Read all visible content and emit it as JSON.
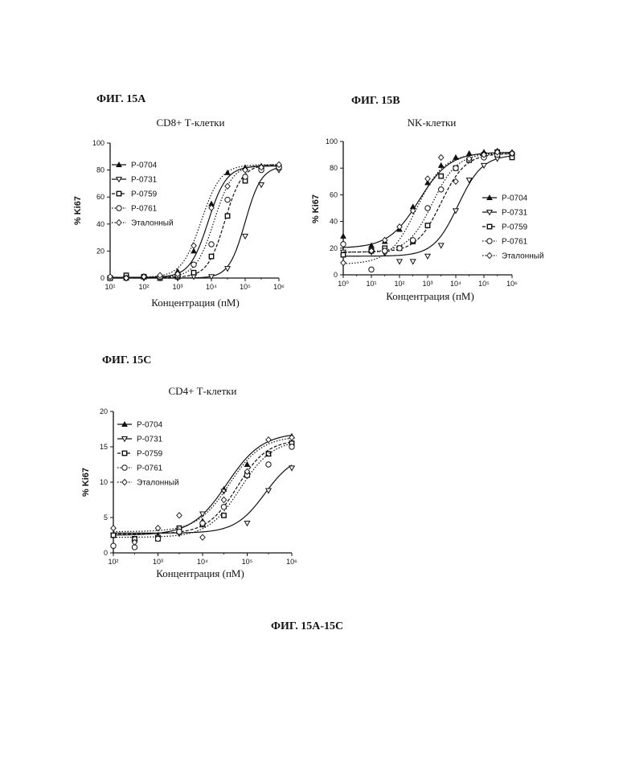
{
  "figure_labels": {
    "a": "ФИГ. 15А",
    "b": "ФИГ. 15В",
    "c": "ФИГ. 15С",
    "caption": "ФИГ. 15А-15С"
  },
  "colors": {
    "ink": "#111111"
  },
  "chart_data": [
    {
      "type": "scatter",
      "title": "CD8+ Т-клетки",
      "xlabel": "Концентрация (пМ)",
      "ylabel": "% Ki67",
      "xscale": "log",
      "xlim": [
        10,
        1000000
      ],
      "ylim": [
        0,
        100
      ],
      "yticks": [
        0,
        20,
        40,
        60,
        80,
        100
      ],
      "xtick_labels": [
        "10¹",
        "10²",
        "10³",
        "10⁴",
        "10⁵",
        "10⁶"
      ],
      "legend_position": "upper-left",
      "series": [
        {
          "name": "P-0704",
          "marker": "triangle-up",
          "line": "solid",
          "fit": {
            "bottom": 0.5,
            "top": 83,
            "ec50": 8000,
            "hill": 1.6
          },
          "x": [
            10,
            30,
            100,
            300,
            1000,
            3000,
            10000,
            30000,
            100000,
            300000,
            1000000
          ],
          "y": [
            0,
            0,
            1,
            2,
            5,
            20,
            55,
            78,
            82,
            83,
            84
          ]
        },
        {
          "name": "P-0731",
          "marker": "triangle-down",
          "line": "solid",
          "fit": {
            "bottom": 0,
            "top": 83,
            "ec50": 100000,
            "hill": 1.8
          },
          "x": [
            10,
            30,
            100,
            300,
            1000,
            3000,
            10000,
            30000,
            100000,
            300000,
            1000000
          ],
          "y": [
            0,
            0,
            0,
            0,
            0,
            1,
            1,
            7,
            31,
            69,
            80
          ]
        },
        {
          "name": "P-0759",
          "marker": "square",
          "line": "dashed",
          "fit": {
            "bottom": 0.5,
            "top": 84,
            "ec50": 25000,
            "hill": 1.7
          },
          "x": [
            10,
            30,
            100,
            300,
            1000,
            3000,
            10000,
            30000,
            100000,
            300000,
            1000000
          ],
          "y": [
            0,
            2,
            1,
            0,
            1,
            4,
            16,
            46,
            72,
            81,
            82
          ]
        },
        {
          "name": "P-0761",
          "marker": "circle",
          "line": "dotted",
          "fit": {
            "bottom": 0.5,
            "top": 84,
            "ec50": 12000,
            "hill": 1.6
          },
          "x": [
            10,
            30,
            100,
            300,
            1000,
            3000,
            10000,
            30000,
            100000,
            300000,
            1000000
          ],
          "y": [
            0,
            0,
            1,
            1,
            2,
            10,
            25,
            58,
            75,
            80,
            82
          ]
        },
        {
          "name": "Эталонный",
          "marker": "diamond",
          "line": "dotted",
          "fit": {
            "bottom": 0.5,
            "top": 84,
            "ec50": 5000,
            "hill": 1.5
          },
          "x": [
            10,
            30,
            100,
            300,
            1000,
            3000,
            10000,
            30000,
            100000,
            300000,
            1000000
          ],
          "y": [
            1,
            0,
            1,
            2,
            3,
            24,
            52,
            68,
            80,
            82,
            84
          ]
        }
      ]
    },
    {
      "type": "scatter",
      "title": "NK-клетки",
      "xlabel": "Концентрация (пМ)",
      "ylabel": "% Ki67",
      "xscale": "log",
      "xlim": [
        1,
        1000000
      ],
      "ylim": [
        0,
        100
      ],
      "yticks": [
        0,
        20,
        40,
        60,
        80,
        100
      ],
      "xtick_labels": [
        "10⁰",
        "10¹",
        "10²",
        "10³",
        "10⁴",
        "10⁵",
        "10⁶"
      ],
      "legend_position": "lower-right",
      "series": [
        {
          "name": "P-0704",
          "marker": "triangle-up",
          "line": "solid",
          "fit": {
            "bottom": 20,
            "top": 92,
            "ec50": 500,
            "hill": 0.8
          },
          "x": [
            1,
            10,
            30,
            100,
            300,
            1000,
            3000,
            10000,
            30000,
            100000,
            300000,
            1000000
          ],
          "y": [
            29,
            22,
            25,
            34,
            51,
            69,
            82,
            88,
            91,
            92,
            93,
            92
          ]
        },
        {
          "name": "P-0731",
          "marker": "triangle-down",
          "line": "solid",
          "fit": {
            "bottom": 14,
            "top": 90,
            "ec50": 12000,
            "hill": 1.0
          },
          "x": [
            1,
            10,
            30,
            100,
            300,
            1000,
            3000,
            10000,
            30000,
            100000,
            300000,
            1000000
          ],
          "y": [
            17,
            17,
            16,
            10,
            10,
            14,
            22,
            48,
            71,
            82,
            87,
            90
          ]
        },
        {
          "name": "P-0759",
          "marker": "square",
          "line": "dashed",
          "fit": {
            "bottom": 17,
            "top": 91,
            "ec50": 3000,
            "hill": 1.0
          },
          "x": [
            1,
            10,
            30,
            100,
            300,
            1000,
            3000,
            10000,
            30000,
            100000,
            300000,
            1000000
          ],
          "y": [
            15,
            18,
            20,
            20,
            25,
            37,
            74,
            80,
            86,
            90,
            92,
            88
          ]
        },
        {
          "name": "P-0761",
          "marker": "circle",
          "line": "dotted",
          "fit": {
            "bottom": 17,
            "top": 91,
            "ec50": 1500,
            "hill": 1.0
          },
          "x": [
            1,
            10,
            30,
            100,
            300,
            1000,
            3000,
            10000,
            30000,
            100000,
            300000,
            1000000
          ],
          "y": [
            23,
            4,
            18,
            20,
            26,
            50,
            64,
            80,
            86,
            88,
            90,
            91
          ]
        },
        {
          "name": "Эталонный",
          "marker": "diamond",
          "line": "dotted",
          "fit": {
            "bottom": 8,
            "top": 91,
            "ec50": 400,
            "hill": 0.9
          },
          "x": [
            1,
            10,
            30,
            100,
            300,
            1000,
            3000,
            10000,
            30000,
            100000,
            300000,
            1000000
          ],
          "y": [
            9,
            18,
            26,
            36,
            48,
            72,
            88,
            70,
            87,
            90,
            92,
            91
          ]
        }
      ]
    },
    {
      "type": "scatter",
      "title": "CD4+ Т-клетки",
      "xlabel": "Концентрация (пМ)",
      "ylabel": "% Ki67",
      "xscale": "log",
      "xlim": [
        100,
        1000000
      ],
      "ylim": [
        0,
        20
      ],
      "yticks": [
        0,
        5,
        10,
        15,
        20
      ],
      "xtick_labels": [
        "10²",
        "10³",
        "10⁴",
        "10⁵",
        "10⁶"
      ],
      "legend_position": "upper-left",
      "series": [
        {
          "name": "P-0704",
          "marker": "triangle-up",
          "line": "solid",
          "fit": {
            "bottom": 2.5,
            "top": 17,
            "ec50": 35000,
            "hill": 1.1
          },
          "x": [
            100,
            300,
            1000,
            3000,
            10000,
            30000,
            100000,
            300000,
            1000000
          ],
          "y": [
            2.5,
            2,
            2.5,
            3,
            4.5,
            9,
            12.5,
            14,
            16.5
          ]
        },
        {
          "name": "P-0731",
          "marker": "triangle-down",
          "line": "solid",
          "fit": {
            "bottom": 2.8,
            "top": 14,
            "ec50": 250000,
            "hill": 1.3
          },
          "x": [
            100,
            300,
            1000,
            3000,
            10000,
            30000,
            100000,
            300000,
            1000000
          ],
          "y": [
            2.5,
            1.5,
            2.2,
            2.7,
            5.5,
            8.7,
            4.2,
            8.8,
            12
          ]
        },
        {
          "name": "P-0759",
          "marker": "square",
          "line": "dashed",
          "fit": {
            "bottom": 2.7,
            "top": 16,
            "ec50": 60000,
            "hill": 1.3
          },
          "x": [
            100,
            300,
            1000,
            3000,
            10000,
            30000,
            100000,
            300000,
            1000000
          ],
          "y": [
            2.5,
            2,
            2,
            3.5,
            4,
            5.3,
            11,
            14,
            15.5
          ]
        },
        {
          "name": "P-0761",
          "marker": "circle",
          "line": "dotted",
          "fit": {
            "bottom": 2.2,
            "top": 16,
            "ec50": 70000,
            "hill": 1.2
          },
          "x": [
            100,
            300,
            1000,
            3000,
            10000,
            30000,
            100000,
            300000,
            1000000
          ],
          "y": [
            1,
            0.8,
            2,
            3,
            4.2,
            6.5,
            11,
            12.5,
            15
          ]
        },
        {
          "name": "Эталонный",
          "marker": "diamond",
          "line": "dotted",
          "fit": {
            "bottom": 3,
            "top": 16.5,
            "ec50": 40000,
            "hill": 1.2
          },
          "x": [
            100,
            300,
            1000,
            3000,
            10000,
            30000,
            100000,
            300000,
            1000000
          ],
          "y": [
            3.5,
            1.5,
            3.5,
            5.3,
            2.2,
            7.5,
            11.5,
            16,
            16.3
          ]
        }
      ]
    }
  ]
}
